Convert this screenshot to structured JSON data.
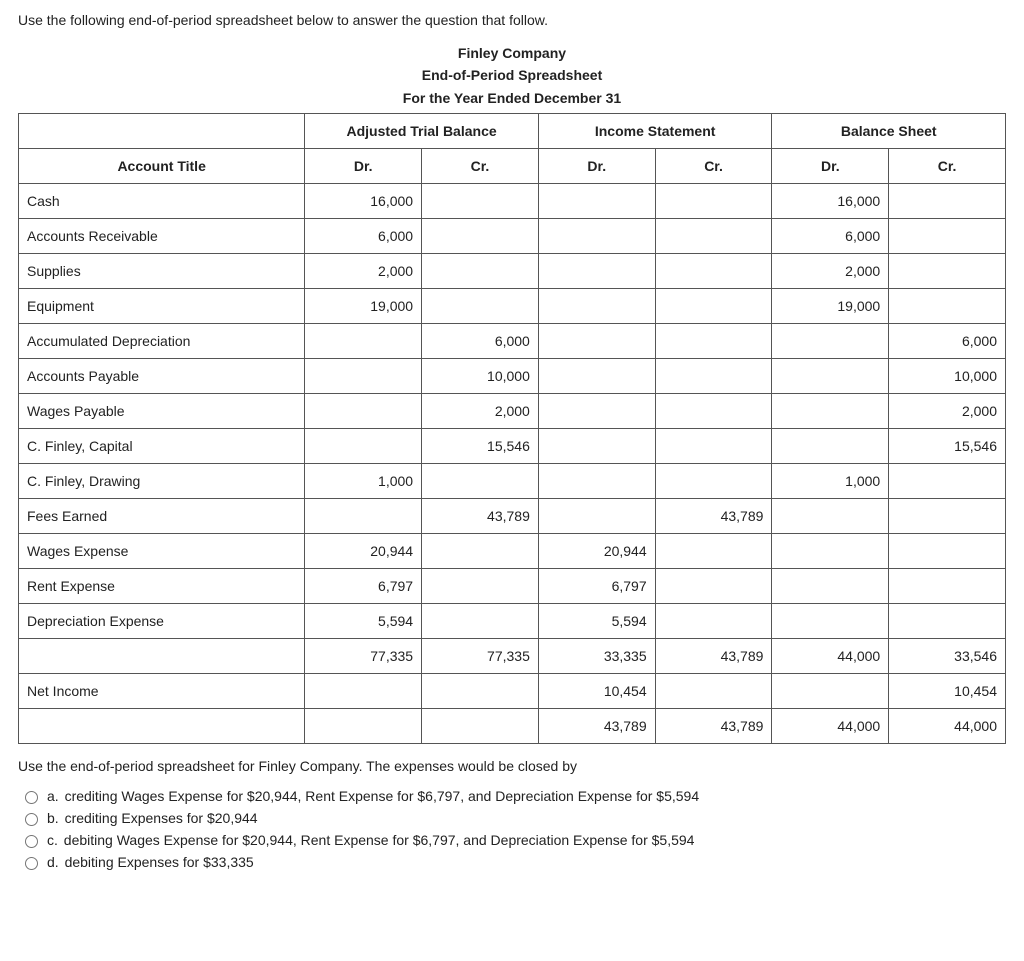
{
  "intro": "Use the following end-of-period spreadsheet below to answer the question that follow.",
  "heading": {
    "company": "Finley Company",
    "report": "End-of-Period Spreadsheet",
    "period": "For the Year Ended December 31"
  },
  "table": {
    "group_headers": {
      "blank": "",
      "atb": "Adjusted Trial Balance",
      "is": "Income Statement",
      "bs": "Balance Sheet"
    },
    "sub_headers": {
      "title": "Account Title",
      "dr": "Dr.",
      "cr": "Cr."
    },
    "rows": [
      {
        "title": "Cash",
        "atb_dr": "16,000",
        "atb_cr": "",
        "is_dr": "",
        "is_cr": "",
        "bs_dr": "16,000",
        "bs_cr": ""
      },
      {
        "title": "Accounts Receivable",
        "atb_dr": "6,000",
        "atb_cr": "",
        "is_dr": "",
        "is_cr": "",
        "bs_dr": "6,000",
        "bs_cr": ""
      },
      {
        "title": "Supplies",
        "atb_dr": "2,000",
        "atb_cr": "",
        "is_dr": "",
        "is_cr": "",
        "bs_dr": "2,000",
        "bs_cr": ""
      },
      {
        "title": "Equipment",
        "atb_dr": "19,000",
        "atb_cr": "",
        "is_dr": "",
        "is_cr": "",
        "bs_dr": "19,000",
        "bs_cr": ""
      },
      {
        "title": "Accumulated Depreciation",
        "atb_dr": "",
        "atb_cr": "6,000",
        "is_dr": "",
        "is_cr": "",
        "bs_dr": "",
        "bs_cr": "6,000"
      },
      {
        "title": "Accounts Payable",
        "atb_dr": "",
        "atb_cr": "10,000",
        "is_dr": "",
        "is_cr": "",
        "bs_dr": "",
        "bs_cr": "10,000"
      },
      {
        "title": "Wages Payable",
        "atb_dr": "",
        "atb_cr": "2,000",
        "is_dr": "",
        "is_cr": "",
        "bs_dr": "",
        "bs_cr": "2,000"
      },
      {
        "title": "C. Finley, Capital",
        "atb_dr": "",
        "atb_cr": "15,546",
        "is_dr": "",
        "is_cr": "",
        "bs_dr": "",
        "bs_cr": "15,546"
      },
      {
        "title": "C. Finley, Drawing",
        "atb_dr": "1,000",
        "atb_cr": "",
        "is_dr": "",
        "is_cr": "",
        "bs_dr": "1,000",
        "bs_cr": ""
      },
      {
        "title": "Fees Earned",
        "atb_dr": "",
        "atb_cr": "43,789",
        "is_dr": "",
        "is_cr": "43,789",
        "bs_dr": "",
        "bs_cr": ""
      },
      {
        "title": "Wages Expense",
        "atb_dr": "20,944",
        "atb_cr": "",
        "is_dr": "20,944",
        "is_cr": "",
        "bs_dr": "",
        "bs_cr": ""
      },
      {
        "title": "Rent Expense",
        "atb_dr": "6,797",
        "atb_cr": "",
        "is_dr": "6,797",
        "is_cr": "",
        "bs_dr": "",
        "bs_cr": ""
      },
      {
        "title": "Depreciation Expense",
        "atb_dr": "5,594",
        "atb_cr": "",
        "is_dr": "5,594",
        "is_cr": "",
        "bs_dr": "",
        "bs_cr": ""
      },
      {
        "title": "",
        "atb_dr": "77,335",
        "atb_cr": "77,335",
        "is_dr": "33,335",
        "is_cr": "43,789",
        "bs_dr": "44,000",
        "bs_cr": "33,546"
      },
      {
        "title": "Net Income",
        "atb_dr": "",
        "atb_cr": "",
        "is_dr": "10,454",
        "is_cr": "",
        "bs_dr": "",
        "bs_cr": "10,454"
      },
      {
        "title": "",
        "atb_dr": "",
        "atb_cr": "",
        "is_dr": "43,789",
        "is_cr": "43,789",
        "bs_dr": "44,000",
        "bs_cr": "44,000"
      }
    ]
  },
  "followup": "Use the end-of-period spreadsheet for Finley Company. The expenses would be closed by",
  "options": [
    {
      "key": "a.",
      "text": "crediting Wages Expense for $20,944, Rent Expense for $6,797, and Depreciation Expense for $5,594"
    },
    {
      "key": "b.",
      "text": "crediting Expenses for $20,944"
    },
    {
      "key": "c.",
      "text": "debiting Wages Expense for $20,944, Rent Expense for $6,797, and Depreciation Expense for $5,594"
    },
    {
      "key": "d.",
      "text": "debiting Expenses for $33,335"
    }
  ]
}
